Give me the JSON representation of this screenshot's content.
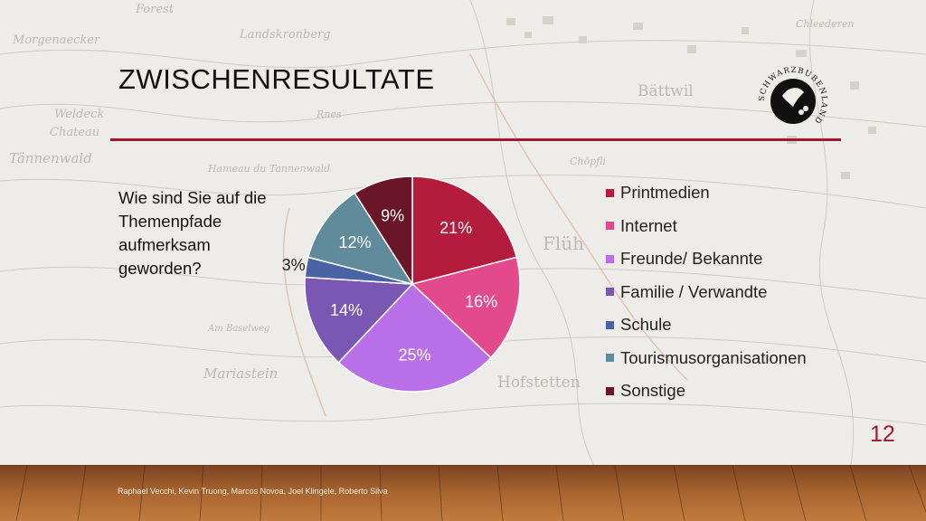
{
  "slide": {
    "title": "ZWISCHENRESULTATE",
    "question": "Wie sind Sie auf die Themenpfade aufmerksam geworden?",
    "page_number": "12",
    "footer": "Raphael Vecchi, Kevin Truong, Marcos Novoa, Joel Klingele, Roberto Silva",
    "logo_text": "SCHWARZBUBENLAND",
    "accent_color": "#a3182f"
  },
  "map_labels": [
    "Forest",
    "Morgenaecker",
    "Landskronberg",
    "Bättwil",
    "Weldeck",
    "Chateau",
    "Tännenwald",
    "Hameau du Tannenwald",
    "Mariastein",
    "Hofstetten",
    "Flüh",
    "Chöpfli",
    "Chleederen",
    "Rnes",
    "Am Baselweg"
  ],
  "chart_data": {
    "type": "pie",
    "title": "",
    "start_angle_deg": 0,
    "direction": "clockwise",
    "labels_position": "inside",
    "legend_position": "right",
    "categories": [
      "Printmedien",
      "Internet",
      "Freunde/ Bekannte",
      "Familie / Verwandte",
      "Schule",
      "Tourismusorganisationen",
      "Sonstige"
    ],
    "values": [
      21,
      16,
      25,
      14,
      3,
      12,
      9
    ],
    "value_labels": [
      "21%",
      "16%",
      "25%",
      "14%",
      "3%",
      "12%",
      "9%"
    ],
    "colors": [
      "#b41c3d",
      "#e24a8b",
      "#b86fe8",
      "#7a57b3",
      "#4a63a4",
      "#5f8b9a",
      "#6a1629"
    ]
  }
}
